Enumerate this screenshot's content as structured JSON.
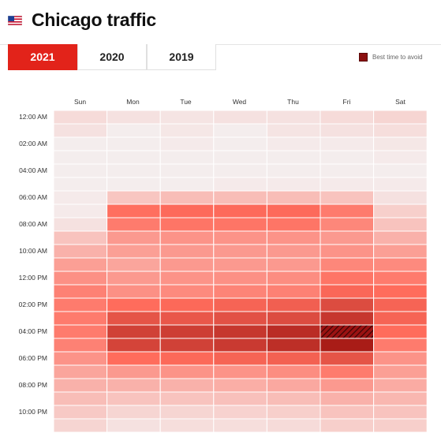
{
  "header": {
    "title": "Chicago traffic",
    "flag_icon": "us-flag-icon"
  },
  "tabs": [
    {
      "label": "2021",
      "active": true
    },
    {
      "label": "2020",
      "active": false
    },
    {
      "label": "2019",
      "active": false
    }
  ],
  "legend": {
    "label": "Best time to avoid",
    "color": "#8b1010"
  },
  "colors": {
    "accent": "#e2231a",
    "hatch": "#5a0808"
  },
  "chart_data": {
    "type": "heatmap",
    "days": [
      "Sun",
      "Mon",
      "Tue",
      "Wed",
      "Thu",
      "Fri",
      "Sat"
    ],
    "time_labels": [
      "12:00 AM",
      "02:00 AM",
      "04:00 AM",
      "06:00 AM",
      "08:00 AM",
      "10:00 AM",
      "12:00 PM",
      "02:00 PM",
      "04:00 PM",
      "06:00 PM",
      "08:00 PM",
      "10:00 PM"
    ],
    "best_time_to_avoid": {
      "day": "Fri",
      "hour": 16
    },
    "levels_by_day_hourly": [
      [
        0.08,
        0.06,
        0.02,
        0.02,
        0.02,
        0.02,
        0.03,
        0.03,
        0.06,
        0.16,
        0.22,
        0.28,
        0.33,
        0.38,
        0.4,
        0.4,
        0.4,
        0.38,
        0.32,
        0.26,
        0.22,
        0.18,
        0.14,
        0.1
      ],
      [
        0.06,
        0.02,
        0.02,
        0.02,
        0.02,
        0.02,
        0.15,
        0.44,
        0.4,
        0.3,
        0.28,
        0.26,
        0.3,
        0.33,
        0.45,
        0.6,
        0.72,
        0.7,
        0.45,
        0.3,
        0.22,
        0.16,
        0.1,
        0.06
      ],
      [
        0.05,
        0.04,
        0.03,
        0.02,
        0.02,
        0.02,
        0.18,
        0.46,
        0.42,
        0.32,
        0.3,
        0.3,
        0.32,
        0.35,
        0.47,
        0.58,
        0.74,
        0.72,
        0.47,
        0.32,
        0.22,
        0.16,
        0.1,
        0.07
      ],
      [
        0.06,
        0.02,
        0.02,
        0.02,
        0.02,
        0.03,
        0.18,
        0.46,
        0.42,
        0.32,
        0.3,
        0.3,
        0.33,
        0.37,
        0.5,
        0.62,
        0.78,
        0.76,
        0.5,
        0.32,
        0.23,
        0.17,
        0.11,
        0.07
      ],
      [
        0.06,
        0.05,
        0.03,
        0.02,
        0.02,
        0.03,
        0.18,
        0.46,
        0.42,
        0.32,
        0.3,
        0.3,
        0.34,
        0.38,
        0.53,
        0.65,
        0.85,
        0.83,
        0.52,
        0.34,
        0.25,
        0.18,
        0.12,
        0.08
      ],
      [
        0.08,
        0.06,
        0.03,
        0.02,
        0.02,
        0.03,
        0.16,
        0.4,
        0.36,
        0.3,
        0.32,
        0.36,
        0.42,
        0.48,
        0.65,
        0.78,
        1.0,
        0.95,
        0.6,
        0.4,
        0.3,
        0.22,
        0.16,
        0.12
      ],
      [
        0.1,
        0.07,
        0.04,
        0.03,
        0.02,
        0.03,
        0.06,
        0.12,
        0.16,
        0.22,
        0.28,
        0.35,
        0.4,
        0.45,
        0.5,
        0.5,
        0.45,
        0.4,
        0.32,
        0.28,
        0.24,
        0.2,
        0.16,
        0.12
      ]
    ]
  }
}
